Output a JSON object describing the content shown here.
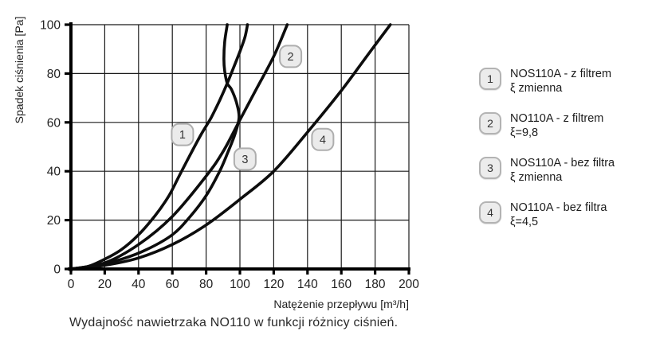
{
  "chart_data": {
    "type": "line",
    "title": "",
    "xlabel": "Natężenie przepływu [m³/h]",
    "ylabel": "Spadek ciśnienia [Pa]",
    "caption": "Wydajność nawietrzaka NO110 w funkcji różnicy ciśnień.",
    "xlim": [
      0,
      200
    ],
    "ylim": [
      0,
      100
    ],
    "x_ticks": [
      0,
      20,
      40,
      60,
      80,
      100,
      120,
      140,
      160,
      180,
      200
    ],
    "y_ticks": [
      0,
      20,
      40,
      60,
      80,
      100
    ],
    "grid": true,
    "legend_position": "right",
    "series": [
      {
        "id": "1",
        "name": "NOS110A - z filtrem ξ zmienna",
        "points": [
          [
            0,
            0
          ],
          [
            10,
            1
          ],
          [
            20,
            4
          ],
          [
            30,
            8
          ],
          [
            40,
            14
          ],
          [
            50,
            22
          ],
          [
            58,
            30
          ],
          [
            64,
            38
          ],
          [
            70,
            46
          ],
          [
            77,
            55
          ],
          [
            83,
            62
          ],
          [
            88,
            69
          ],
          [
            92.5,
            76
          ],
          [
            96,
            82
          ],
          [
            100,
            89
          ],
          [
            103,
            95
          ],
          [
            104.5,
            100
          ]
        ]
      },
      {
        "id": "2",
        "name": "NO110A - z filtrem ξ=9,8",
        "points": [
          [
            0,
            0
          ],
          [
            20,
            2.5
          ],
          [
            40,
            10
          ],
          [
            60,
            21.5
          ],
          [
            80,
            38
          ],
          [
            90,
            48
          ],
          [
            100,
            61
          ],
          [
            110,
            74
          ],
          [
            120,
            87
          ],
          [
            128,
            100
          ]
        ]
      },
      {
        "id": "3",
        "name": "NOS110A - bez filtra ξ zmienna",
        "points": [
          [
            0,
            0
          ],
          [
            15,
            1.5
          ],
          [
            30,
            4
          ],
          [
            45,
            8
          ],
          [
            60,
            14
          ],
          [
            70,
            21
          ],
          [
            80,
            30
          ],
          [
            88,
            40
          ],
          [
            93,
            48
          ],
          [
            97,
            55
          ],
          [
            99.5,
            62
          ],
          [
            98,
            68
          ],
          [
            95,
            73.5
          ],
          [
            92.5,
            76
          ],
          [
            91,
            81
          ],
          [
            90.5,
            86
          ],
          [
            91,
            93
          ],
          [
            92.5,
            100
          ]
        ]
      },
      {
        "id": "4",
        "name": "NO110A - bez filtra ξ=4,5",
        "points": [
          [
            0,
            0
          ],
          [
            20,
            1.5
          ],
          [
            40,
            4.5
          ],
          [
            60,
            10
          ],
          [
            80,
            18
          ],
          [
            100,
            28.5
          ],
          [
            120,
            40
          ],
          [
            140,
            56
          ],
          [
            160,
            73
          ],
          [
            175,
            87
          ],
          [
            189,
            100
          ]
        ]
      }
    ],
    "curve_labels": [
      {
        "text": "1",
        "x": 66,
        "y": 55
      },
      {
        "text": "2",
        "x": 130,
        "y": 87
      },
      {
        "text": "3",
        "x": 103,
        "y": 45
      },
      {
        "text": "4",
        "x": 149,
        "y": 53
      }
    ]
  },
  "legend": {
    "items": [
      {
        "num": "1",
        "line1": "NOS110A - z filtrem",
        "line2": "ξ zmienna"
      },
      {
        "num": "2",
        "line1": "NO110A - z filtrem",
        "line2": "ξ=9,8"
      },
      {
        "num": "3",
        "line1": "NOS110A - bez filtra",
        "line2": "ξ zmienna"
      },
      {
        "num": "4",
        "line1": "NO110A - bez filtra",
        "line2": "ξ=4,5"
      }
    ]
  },
  "colors": {
    "curve": "#0d0d0d",
    "grid": "#1a1a1a",
    "axis": "#000000",
    "badge_fill": "#ebebeb",
    "badge_border": "#aeaeae",
    "text": "#1f1f1f"
  }
}
